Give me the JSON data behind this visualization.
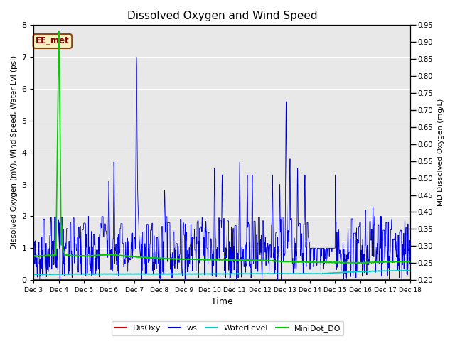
{
  "title": "Dissolved Oxygen and Wind Speed",
  "ylabel_left": "Dissolved Oxygen (mV), Wind Speed, Water Lvl (psi)",
  "ylabel_right": "MD Dissolved Oxygen (mg/L)",
  "xlabel": "Time",
  "ylim_left": [
    0.0,
    8.0
  ],
  "ylim_right": [
    0.2,
    0.95
  ],
  "annotation_text": "EE_met",
  "bg_color": "#e8e8e8",
  "x_tick_labels": [
    "Dec 3",
    "Dec 4",
    "Dec 5",
    "Dec 6",
    "Dec 7",
    "Dec 8",
    "Dec 9",
    "Dec 10",
    "Dec 11",
    "Dec 12",
    "Dec 13",
    "Dec 14",
    "Dec 15",
    "Dec 16",
    "Dec 17",
    "Dec 18"
  ],
  "legend_labels": [
    "DisOxy",
    "ws",
    "WaterLevel",
    "MiniDot_DO"
  ],
  "legend_colors": [
    "#cc0000",
    "#0000dd",
    "#00cccc",
    "#00cc00"
  ],
  "yticks_left": [
    0.0,
    1.0,
    2.0,
    3.0,
    4.0,
    5.0,
    6.0,
    7.0,
    8.0
  ],
  "yticks_right": [
    0.2,
    0.25,
    0.3,
    0.35,
    0.4,
    0.45,
    0.5,
    0.55,
    0.6,
    0.65,
    0.7,
    0.75,
    0.8,
    0.85,
    0.9,
    0.95
  ]
}
